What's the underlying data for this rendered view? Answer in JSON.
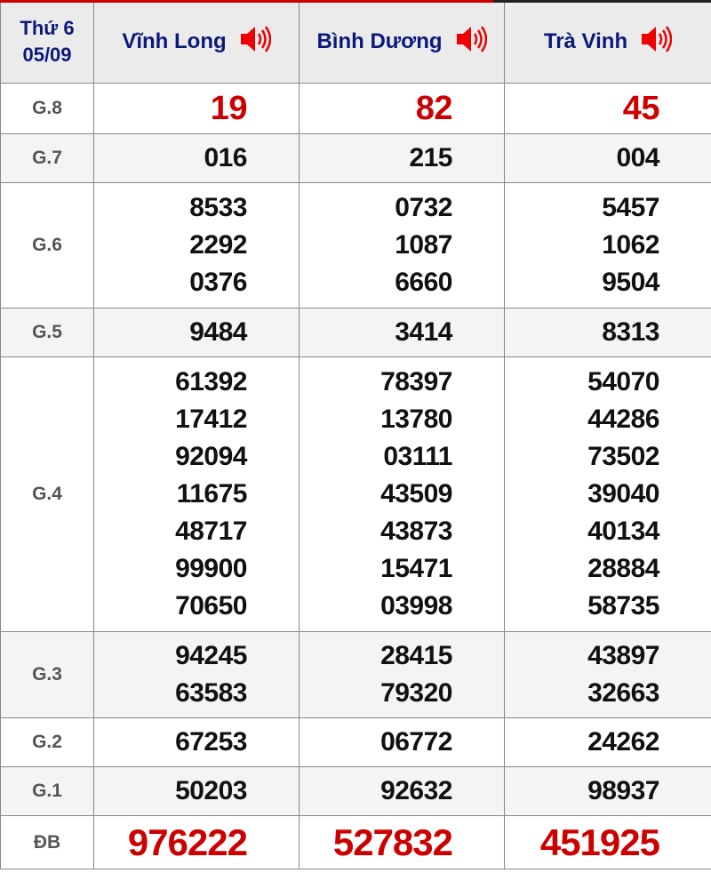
{
  "header": {
    "day": "Thứ 6",
    "date": "05/09",
    "provinces": [
      "Vĩnh Long",
      "Bình Dương",
      "Trà Vinh"
    ],
    "icon": "speaker-icon"
  },
  "colors": {
    "accent_red": "#cc0000",
    "header_text": "#0b1a7a"
  },
  "rows": [
    {
      "label": "G.8",
      "values": [
        [
          "19"
        ],
        [
          "82"
        ],
        [
          "45"
        ]
      ]
    },
    {
      "label": "G.7",
      "values": [
        [
          "016"
        ],
        [
          "215"
        ],
        [
          "004"
        ]
      ]
    },
    {
      "label": "G.6",
      "values": [
        [
          "8533",
          "2292",
          "0376"
        ],
        [
          "0732",
          "1087",
          "6660"
        ],
        [
          "5457",
          "1062",
          "9504"
        ]
      ]
    },
    {
      "label": "G.5",
      "values": [
        [
          "9484"
        ],
        [
          "3414"
        ],
        [
          "8313"
        ]
      ]
    },
    {
      "label": "G.4",
      "values": [
        [
          "61392",
          "17412",
          "92094",
          "11675",
          "48717",
          "99900",
          "70650"
        ],
        [
          "78397",
          "13780",
          "03111",
          "43509",
          "43873",
          "15471",
          "03998"
        ],
        [
          "54070",
          "44286",
          "73502",
          "39040",
          "40134",
          "28884",
          "58735"
        ]
      ]
    },
    {
      "label": "G.3",
      "values": [
        [
          "94245",
          "63583"
        ],
        [
          "28415",
          "79320"
        ],
        [
          "43897",
          "32663"
        ]
      ]
    },
    {
      "label": "G.2",
      "values": [
        [
          "67253"
        ],
        [
          "06772"
        ],
        [
          "24262"
        ]
      ]
    },
    {
      "label": "G.1",
      "values": [
        [
          "50203"
        ],
        [
          "92632"
        ],
        [
          "98937"
        ]
      ]
    },
    {
      "label": "ĐB",
      "values": [
        [
          "976222"
        ],
        [
          "527832"
        ],
        [
          "451925"
        ]
      ]
    }
  ]
}
